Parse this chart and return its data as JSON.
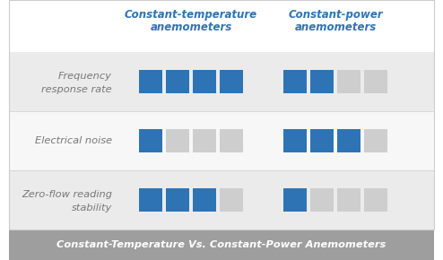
{
  "title": "Constant-Temperature Vs. Constant-Power Anemometers",
  "col1_header_line1": "Constant-temperature",
  "col1_header_line2": "anemometers",
  "col2_header_line1": "Constant-power",
  "col2_header_line2": "anemometers",
  "rows": [
    {
      "label_line1": "Frequency",
      "label_line2": "response rate",
      "ct_score": 4,
      "cp_score": 2
    },
    {
      "label_line1": "Electrical noise",
      "label_line2": "",
      "ct_score": 1,
      "cp_score": 3
    },
    {
      "label_line1": "Zero-flow reading",
      "label_line2": "stability",
      "ct_score": 3,
      "cp_score": 1
    }
  ],
  "max_score": 4,
  "blue_color": "#2E74B5",
  "gray_color": "#CECECE",
  "title_bg_color": "#9E9E9E",
  "header_color": "#2E74B5",
  "row_bg_odd": "#EBEBEB",
  "row_bg_even": "#F7F7F7",
  "label_color": "#777777",
  "title_text_color": "#FFFFFF",
  "background_color": "#FFFFFF",
  "outer_border_color": "#CCCCCC"
}
